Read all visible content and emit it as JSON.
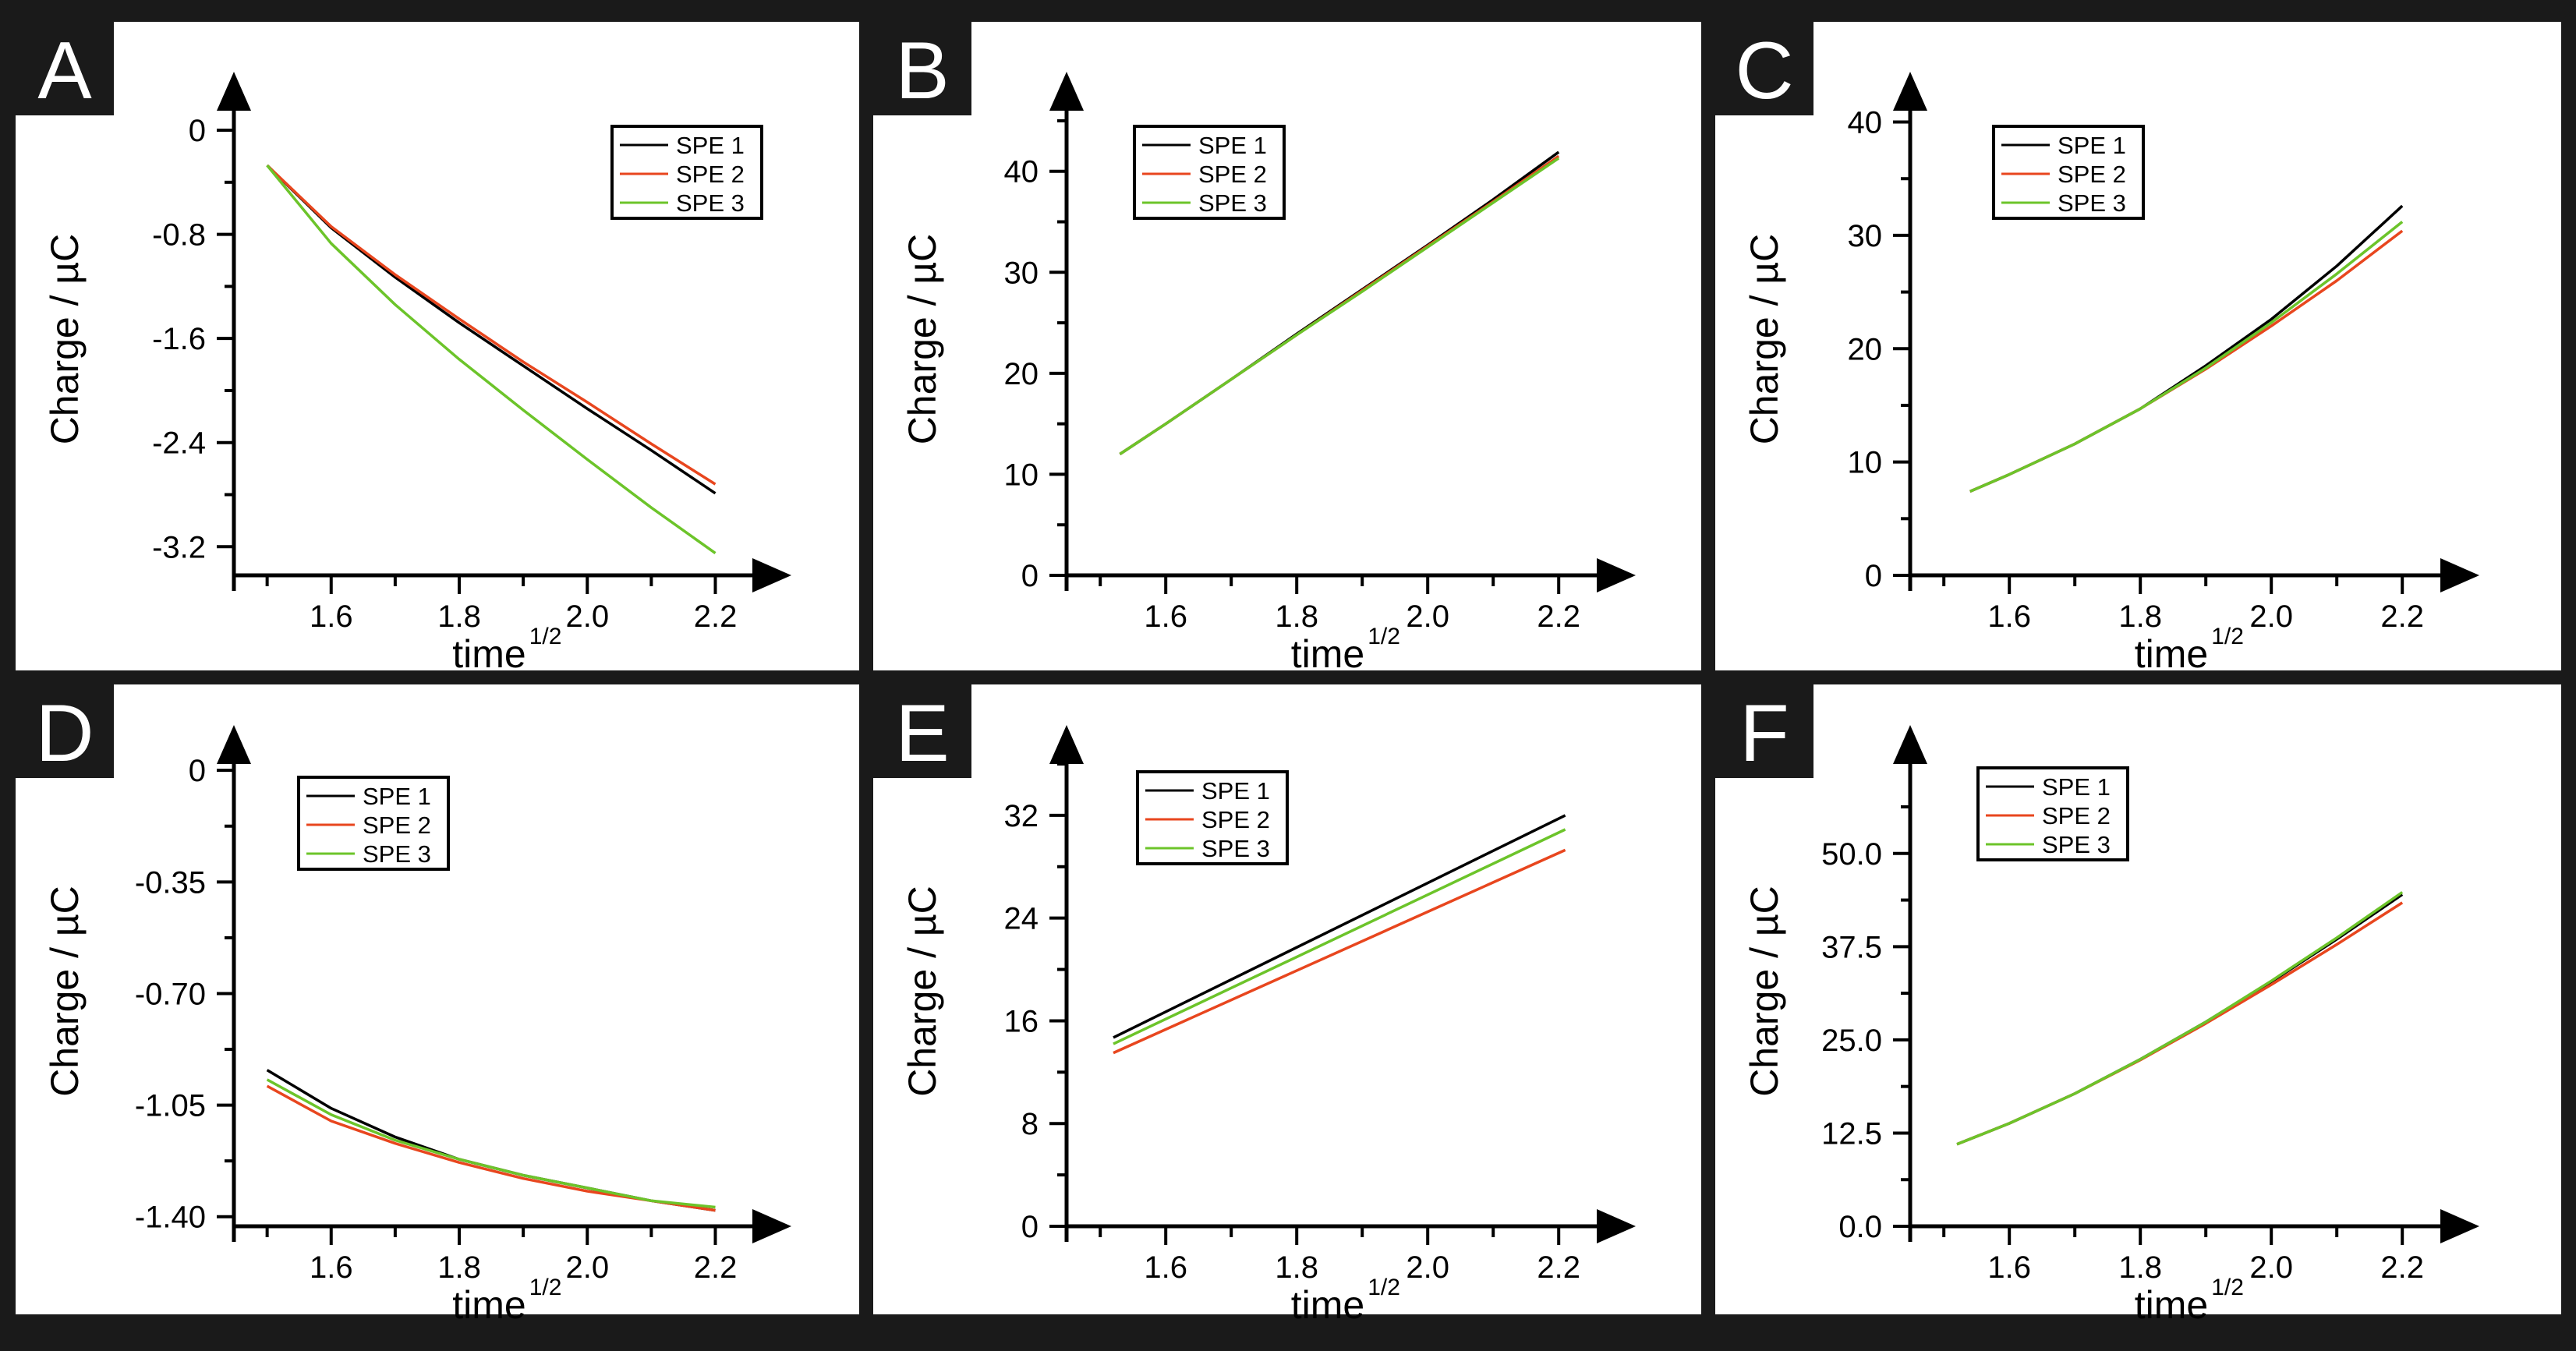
{
  "figure": {
    "series_names": [
      "SPE 1",
      "SPE 2",
      "SPE 3"
    ],
    "series_colors": [
      "#000000",
      "#e8461e",
      "#6cc42a"
    ],
    "frame_color": "#1a1a1a"
  },
  "chart_data": [
    {
      "panel_label": "A",
      "type": "line",
      "xlabel": "time",
      "xlabel_sup": "1/2",
      "ylabel": "Charge / µC",
      "xlim": [
        1.47,
        2.27
      ],
      "ylim": [
        -3.42,
        0.15
      ],
      "xticks": [
        1.6,
        1.8,
        2.0,
        2.2
      ],
      "xtick_labels": [
        "1.6",
        "1.8",
        "2.0",
        "2.2"
      ],
      "yticks": [
        0,
        -0.8,
        -1.6,
        -2.4,
        -3.2
      ],
      "ytick_labels": [
        "0",
        "-0.8",
        "-1.6",
        "-2.4",
        "-3.2"
      ],
      "legend": "top-right",
      "x": [
        1.5,
        1.6,
        1.7,
        1.8,
        1.9,
        2.0,
        2.1,
        2.2
      ],
      "series": [
        {
          "name": "SPE 1",
          "values": [
            -0.27,
            -0.75,
            -1.13,
            -1.48,
            -1.81,
            -2.14,
            -2.46,
            -2.79
          ]
        },
        {
          "name": "SPE 2",
          "values": [
            -0.27,
            -0.74,
            -1.11,
            -1.45,
            -1.78,
            -2.09,
            -2.41,
            -2.72
          ]
        },
        {
          "name": "SPE 3",
          "values": [
            -0.27,
            -0.87,
            -1.34,
            -1.76,
            -2.15,
            -2.53,
            -2.9,
            -3.25
          ]
        }
      ]
    },
    {
      "panel_label": "B",
      "type": "line",
      "xlabel": "time",
      "xlabel_sup": "1/2",
      "ylabel": "Charge / µC",
      "xlim": [
        1.47,
        2.27
      ],
      "ylim": [
        0,
        46
      ],
      "xticks": [
        1.6,
        1.8,
        2.0,
        2.2
      ],
      "xtick_labels": [
        "1.6",
        "1.8",
        "2.0",
        "2.2"
      ],
      "yticks": [
        0,
        10,
        20,
        30,
        40
      ],
      "ytick_labels": [
        "0",
        "10",
        "20",
        "30",
        "40"
      ],
      "legend": "top-left",
      "x": [
        1.53,
        1.6,
        1.7,
        1.8,
        1.9,
        2.0,
        2.1,
        2.2
      ],
      "series": [
        {
          "name": "SPE 1",
          "values": [
            12.0,
            15.0,
            19.4,
            23.9,
            28.3,
            32.7,
            37.2,
            41.9
          ]
        },
        {
          "name": "SPE 2",
          "values": [
            12.0,
            15.0,
            19.4,
            23.8,
            28.2,
            32.6,
            37.0,
            41.5
          ]
        },
        {
          "name": "SPE 3",
          "values": [
            12.0,
            15.0,
            19.4,
            23.8,
            28.1,
            32.5,
            36.9,
            41.3
          ]
        }
      ]
    },
    {
      "panel_label": "C",
      "type": "line",
      "xlabel": "time",
      "xlabel_sup": "1/2",
      "ylabel": "Charge / µC",
      "xlim": [
        1.47,
        2.27
      ],
      "ylim": [
        0,
        41
      ],
      "xticks": [
        1.6,
        1.8,
        2.0,
        2.2
      ],
      "xtick_labels": [
        "1.6",
        "1.8",
        "2.0",
        "2.2"
      ],
      "yticks": [
        0,
        10,
        20,
        30,
        40
      ],
      "ytick_labels": [
        "0",
        "10",
        "20",
        "30",
        "40"
      ],
      "legend": "top-left",
      "x": [
        1.54,
        1.6,
        1.7,
        1.8,
        1.9,
        2.0,
        2.1,
        2.2
      ],
      "series": [
        {
          "name": "SPE 1",
          "values": [
            7.4,
            8.9,
            11.6,
            14.7,
            18.5,
            22.6,
            27.3,
            32.6
          ]
        },
        {
          "name": "SPE 2",
          "values": [
            7.4,
            8.9,
            11.6,
            14.7,
            18.2,
            22.0,
            26.0,
            30.4
          ]
        },
        {
          "name": "SPE 3",
          "values": [
            7.4,
            8.9,
            11.6,
            14.7,
            18.3,
            22.3,
            26.6,
            31.2
          ]
        }
      ]
    },
    {
      "panel_label": "D",
      "type": "line",
      "xlabel": "time",
      "xlabel_sup": "1/2",
      "ylabel": "Charge / µC",
      "xlim": [
        1.47,
        2.27
      ],
      "ylim": [
        -1.43,
        0.02
      ],
      "xticks": [
        1.6,
        1.8,
        2.0,
        2.2
      ],
      "xtick_labels": [
        "1.6",
        "1.8",
        "2.0",
        "2.2"
      ],
      "yticks": [
        0,
        -0.35,
        -0.7,
        -1.05,
        -1.4
      ],
      "ytick_labels": [
        "0",
        "-0.35",
        "-0.70",
        "-1.05",
        "-1.40"
      ],
      "legend": "top-left",
      "x": [
        1.5,
        1.6,
        1.7,
        1.8,
        1.9,
        2.0,
        2.1,
        2.2
      ],
      "series": [
        {
          "name": "SPE 1",
          "values": [
            -0.94,
            -1.06,
            -1.15,
            -1.22,
            -1.27,
            -1.31,
            -1.35,
            -1.38
          ]
        },
        {
          "name": "SPE 2",
          "values": [
            -0.99,
            -1.1,
            -1.17,
            -1.23,
            -1.28,
            -1.32,
            -1.35,
            -1.38
          ]
        },
        {
          "name": "SPE 3",
          "values": [
            -0.97,
            -1.08,
            -1.16,
            -1.22,
            -1.27,
            -1.31,
            -1.35,
            -1.37
          ]
        }
      ]
    },
    {
      "panel_label": "E",
      "type": "line",
      "xlabel": "time",
      "xlabel_sup": "1/2",
      "ylabel": "Charge / µC",
      "xlim": [
        1.47,
        2.27
      ],
      "ylim": [
        0,
        36
      ],
      "xticks": [
        1.6,
        1.8,
        2.0,
        2.2
      ],
      "xtick_labels": [
        "1.6",
        "1.8",
        "2.0",
        "2.2"
      ],
      "yticks": [
        0,
        8,
        16,
        24,
        32
      ],
      "ytick_labels": [
        "0",
        "8",
        "16",
        "24",
        "32"
      ],
      "legend": "top-left",
      "x": [
        1.52,
        2.21
      ],
      "series": [
        {
          "name": "SPE 1",
          "values": [
            14.7,
            32.0
          ]
        },
        {
          "name": "SPE 2",
          "values": [
            13.5,
            29.3
          ]
        },
        {
          "name": "SPE 3",
          "values": [
            14.2,
            30.9
          ]
        }
      ]
    },
    {
      "panel_label": "F",
      "type": "line",
      "xlabel": "time",
      "xlabel_sup": "1/2",
      "ylabel": "Charge / µC",
      "xlim": [
        1.47,
        2.27
      ],
      "ylim": [
        0,
        62
      ],
      "xticks": [
        1.6,
        1.8,
        2.0,
        2.2
      ],
      "xtick_labels": [
        "1.6",
        "1.8",
        "2.0",
        "2.2"
      ],
      "yticks": [
        0,
        12.5,
        25,
        37.5,
        50
      ],
      "ytick_labels": [
        "0.0",
        "12.5",
        "25.0",
        "37.5",
        "50.0"
      ],
      "legend": "top-left",
      "x": [
        1.52,
        1.6,
        1.7,
        1.8,
        1.9,
        2.0,
        2.1,
        2.2
      ],
      "series": [
        {
          "name": "SPE 1",
          "values": [
            11.0,
            13.8,
            17.8,
            22.4,
            27.4,
            32.8,
            38.5,
            44.5
          ]
        },
        {
          "name": "SPE 2",
          "values": [
            11.0,
            13.8,
            17.8,
            22.3,
            27.2,
            32.4,
            37.8,
            43.4
          ]
        },
        {
          "name": "SPE 3",
          "values": [
            11.0,
            13.8,
            17.8,
            22.4,
            27.4,
            32.9,
            38.7,
            44.8
          ]
        }
      ]
    }
  ]
}
